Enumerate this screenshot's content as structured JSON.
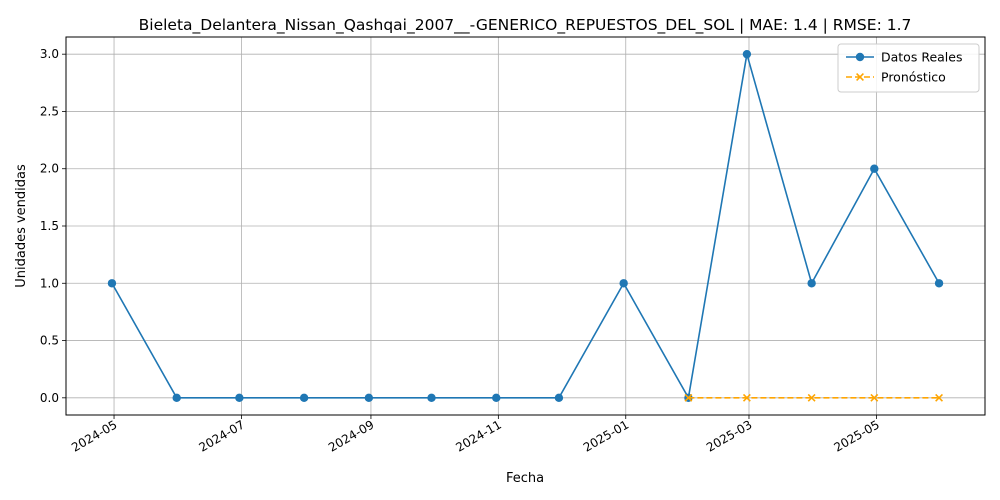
{
  "chart_data": {
    "type": "line",
    "title": "Bieleta_Delantera_Nissan_Qashqai_2007__-GENERICO_REPUESTOS_DEL_SOL | MAE: 1.4 | RMSE: 1.7",
    "xlabel": "Fecha",
    "ylabel": "Unidades vendidas",
    "ylim": [
      -0.15,
      3.15
    ],
    "xlim": [
      "2024-04-08",
      "2025-06-22"
    ],
    "x_ticks": [
      "2024-05",
      "2024-07",
      "2024-09",
      "2024-11",
      "2025-01",
      "2025-03",
      "2025-05"
    ],
    "y_ticks": [
      "0.0",
      "0.5",
      "1.0",
      "1.5",
      "2.0",
      "2.5",
      "3.0"
    ],
    "grid": true,
    "legend_position": "top-right",
    "series": [
      {
        "name": "Datos Reales",
        "color": "#1f77b4",
        "marker": "circle",
        "linestyle": "solid",
        "points": [
          {
            "x": "2024-04-30",
            "y": 1
          },
          {
            "x": "2024-05-31",
            "y": 0
          },
          {
            "x": "2024-06-30",
            "y": 0
          },
          {
            "x": "2024-07-31",
            "y": 0
          },
          {
            "x": "2024-08-31",
            "y": 0
          },
          {
            "x": "2024-09-30",
            "y": 0
          },
          {
            "x": "2024-10-31",
            "y": 0
          },
          {
            "x": "2024-11-30",
            "y": 0
          },
          {
            "x": "2024-12-31",
            "y": 1
          },
          {
            "x": "2025-01-31",
            "y": 0
          },
          {
            "x": "2025-02-28",
            "y": 3
          },
          {
            "x": "2025-03-31",
            "y": 1
          },
          {
            "x": "2025-04-30",
            "y": 2
          },
          {
            "x": "2025-05-31",
            "y": 1
          }
        ]
      },
      {
        "name": "Pronóstico",
        "color": "#ffa500",
        "marker": "x",
        "linestyle": "dashed",
        "points": [
          {
            "x": "2025-01-31",
            "y": 0
          },
          {
            "x": "2025-02-28",
            "y": 0
          },
          {
            "x": "2025-03-31",
            "y": 0
          },
          {
            "x": "2025-04-30",
            "y": 0
          },
          {
            "x": "2025-05-31",
            "y": 0
          }
        ]
      }
    ]
  }
}
